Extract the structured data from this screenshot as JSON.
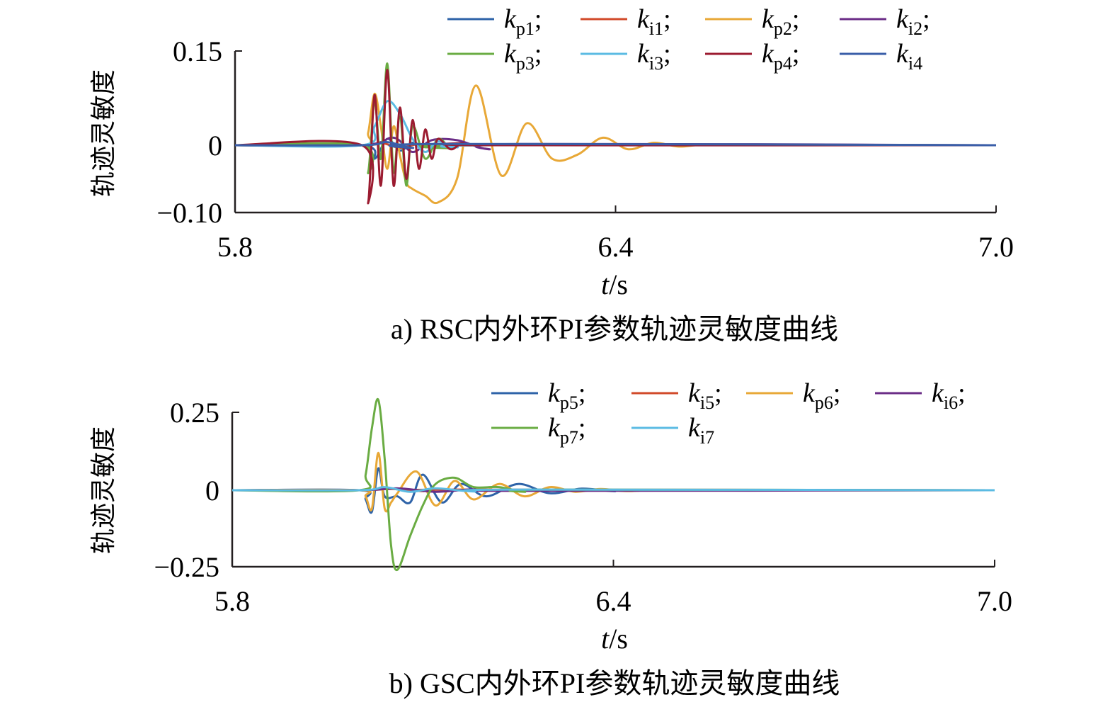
{
  "chart_data": [
    {
      "type": "line",
      "caption": "a) RSC内外环PI参数轨迹灵敏度曲线",
      "ylabel": "轨迹灵敏度",
      "xlabel": "t/s",
      "xlim": [
        5.8,
        7.0
      ],
      "ylim": [
        -0.1,
        0.15
      ],
      "xticks": [
        "5.8",
        "6.4",
        "7.0"
      ],
      "yticks": [
        "0.15",
        "0",
        "−0.10"
      ],
      "yticks_values": [
        0.15,
        0,
        -0.1
      ],
      "legend_location": "top-right",
      "series": [
        {
          "name": "kp1",
          "sym": "k",
          "sub": "p1",
          "sep": ";",
          "color": "#2e63a8",
          "x": [
            5.8,
            6.0,
            6.02,
            6.04,
            6.06,
            6.08,
            6.1,
            6.12,
            6.15,
            6.2,
            7.0
          ],
          "y": [
            0,
            0,
            -0.02,
            0.01,
            -0.008,
            0.004,
            -0.003,
            0.001,
            -0.001,
            0,
            0
          ]
        },
        {
          "name": "ki1",
          "sym": "k",
          "sub": "i1",
          "sep": ";",
          "color": "#d14a2a",
          "x": [
            5.8,
            6.0,
            6.03,
            6.06,
            6.09,
            6.12,
            6.2,
            7.0
          ],
          "y": [
            0,
            0,
            0.004,
            -0.004,
            0.002,
            -0.002,
            0,
            0
          ]
        },
        {
          "name": "kp2",
          "sym": "k",
          "sub": "p2",
          "sep": ";",
          "color": "#e8a837",
          "x": [
            5.8,
            6.0,
            6.01,
            6.02,
            6.03,
            6.04,
            6.05,
            6.06,
            6.07,
            6.08,
            6.1,
            6.12,
            6.15,
            6.18,
            6.22,
            6.26,
            6.3,
            6.34,
            6.38,
            6.42,
            6.46,
            6.5,
            6.54,
            6.6,
            7.0
          ],
          "y": [
            0,
            0,
            0.02,
            0.082,
            0.03,
            -0.035,
            0.03,
            -0.015,
            -0.055,
            -0.065,
            -0.075,
            -0.085,
            -0.05,
            0.095,
            -0.045,
            0.035,
            -0.02,
            -0.014,
            0.012,
            -0.006,
            0.004,
            -0.002,
            0.001,
            0,
            0
          ]
        },
        {
          "name": "ki2",
          "sym": "k",
          "sub": "i2",
          "sep": ";",
          "color": "#6b2d87",
          "x": [
            5.8,
            6.0,
            6.05,
            6.08,
            6.11,
            6.15,
            6.2,
            6.25,
            7.0
          ],
          "y": [
            0,
            0,
            0.012,
            -0.01,
            0.008,
            0.008,
            -0.006,
            0.002,
            0
          ]
        },
        {
          "name": "kp3",
          "sym": "k",
          "sub": "p3",
          "sep": ";",
          "color": "#6aac43",
          "x": [
            5.8,
            6.0,
            6.01,
            6.02,
            6.03,
            6.04,
            6.05,
            6.06,
            6.07,
            6.08,
            6.1,
            6.12,
            6.14,
            6.16,
            7.0
          ],
          "y": [
            0,
            0,
            -0.04,
            0.07,
            -0.02,
            0.13,
            -0.04,
            0.05,
            -0.06,
            0.03,
            -0.02,
            0.01,
            -0.004,
            0,
            0
          ]
        },
        {
          "name": "ki3",
          "sym": "k",
          "sub": "i3",
          "sep": ";",
          "color": "#5bbbe3",
          "x": [
            5.8,
            6.0,
            6.02,
            6.04,
            6.06,
            6.08,
            6.1,
            6.12,
            6.15,
            6.2,
            7.0
          ],
          "y": [
            0,
            0,
            0.03,
            0.07,
            0.05,
            0.01,
            -0.01,
            0.006,
            -0.003,
            0,
            0
          ]
        },
        {
          "name": "kp4",
          "sym": "k",
          "sub": "p4",
          "sep": ";",
          "color": "#9b1b30",
          "x": [
            5.8,
            6.0,
            6.01,
            6.02,
            6.03,
            6.04,
            6.05,
            6.06,
            6.07,
            6.08,
            6.09,
            6.1,
            6.11,
            6.12,
            6.14,
            6.16,
            6.2,
            7.0
          ],
          "y": [
            0,
            0,
            -0.085,
            0.08,
            -0.06,
            0.12,
            -0.06,
            0.06,
            -0.05,
            0.04,
            -0.035,
            0.025,
            -0.02,
            0.01,
            -0.006,
            0.003,
            0,
            0
          ]
        },
        {
          "name": "ki4",
          "sym": "k",
          "sub": "i4",
          "sep": "",
          "color": "#3a5ea8",
          "x": [
            5.8,
            6.0,
            6.04,
            6.08,
            6.12,
            7.0
          ],
          "y": [
            0,
            0,
            0.005,
            -0.004,
            0.002,
            0
          ]
        }
      ]
    },
    {
      "type": "line",
      "caption": "b) GSC内外环PI参数轨迹灵敏度曲线",
      "ylabel": "轨迹灵敏度",
      "xlabel": "t/s",
      "xlim": [
        5.8,
        7.0
      ],
      "ylim": [
        -0.25,
        0.25
      ],
      "xticks": [
        "5.8",
        "6.4",
        "7.0"
      ],
      "yticks": [
        "0.25",
        "0",
        "−0.25"
      ],
      "yticks_values": [
        0.25,
        0,
        -0.25
      ],
      "legend_location": "top-right",
      "series": [
        {
          "name": "kp5",
          "sym": "k",
          "sub": "p5",
          "sep": ";",
          "color": "#2e63a8",
          "x": [
            5.8,
            6.0,
            6.01,
            6.02,
            6.03,
            6.04,
            6.06,
            6.08,
            6.1,
            6.13,
            6.16,
            6.2,
            6.25,
            6.3,
            6.35,
            6.4,
            6.45,
            7.0
          ],
          "y": [
            0,
            0,
            -0.03,
            -0.07,
            0.07,
            -0.02,
            -0.02,
            -0.04,
            0.05,
            -0.04,
            0.02,
            -0.02,
            0.02,
            -0.01,
            0.005,
            -0.003,
            0,
            0
          ]
        },
        {
          "name": "ki5",
          "sym": "k",
          "sub": "i5",
          "sep": ";",
          "color": "#d14a2a",
          "x": [
            5.8,
            6.0,
            6.05,
            6.1,
            6.15,
            7.0
          ],
          "y": [
            0,
            0,
            0.004,
            -0.003,
            0.002,
            0
          ]
        },
        {
          "name": "kp6",
          "sym": "k",
          "sub": "p6",
          "sep": ";",
          "color": "#e8a837",
          "x": [
            5.8,
            6.0,
            6.01,
            6.02,
            6.03,
            6.04,
            6.05,
            6.06,
            6.09,
            6.12,
            6.15,
            6.18,
            6.22,
            6.26,
            6.3,
            6.34,
            6.38,
            6.42,
            6.46,
            6.5,
            7.0
          ],
          "y": [
            0,
            0,
            -0.02,
            -0.06,
            0.12,
            -0.06,
            -0.04,
            -0.01,
            0.06,
            -0.05,
            0.03,
            -0.03,
            0.02,
            -0.02,
            0.01,
            -0.005,
            0.004,
            -0.003,
            0.001,
            0,
            0
          ]
        },
        {
          "name": "ki6",
          "sym": "k",
          "sub": "i6",
          "sep": ";",
          "color": "#6b2d87",
          "x": [
            5.8,
            6.0,
            6.06,
            6.12,
            6.18,
            6.24,
            7.0
          ],
          "y": [
            0,
            0,
            0.006,
            -0.005,
            0.003,
            -0.002,
            0
          ]
        },
        {
          "name": "kp7",
          "sym": "k",
          "sub": "p7",
          "sep": ";",
          "color": "#6aac43",
          "x": [
            5.8,
            6.0,
            6.01,
            6.02,
            6.03,
            6.04,
            6.05,
            6.06,
            6.08,
            6.1,
            6.12,
            6.15,
            6.18,
            6.22,
            6.26,
            6.3,
            7.0
          ],
          "y": [
            0,
            0,
            0.05,
            0.2,
            0.29,
            0.1,
            -0.18,
            -0.26,
            -0.15,
            -0.05,
            0.02,
            0.04,
            0.01,
            0.01,
            -0.005,
            0.002,
            0
          ]
        },
        {
          "name": "ki7",
          "sym": "k",
          "sub": "i7",
          "sep": "",
          "color": "#5bbbe3",
          "x": [
            5.8,
            6.0,
            6.04,
            6.08,
            6.12,
            6.18,
            6.24,
            7.0
          ],
          "y": [
            0,
            0,
            0.01,
            -0.005,
            0.006,
            -0.004,
            0.002,
            0
          ]
        }
      ]
    }
  ]
}
